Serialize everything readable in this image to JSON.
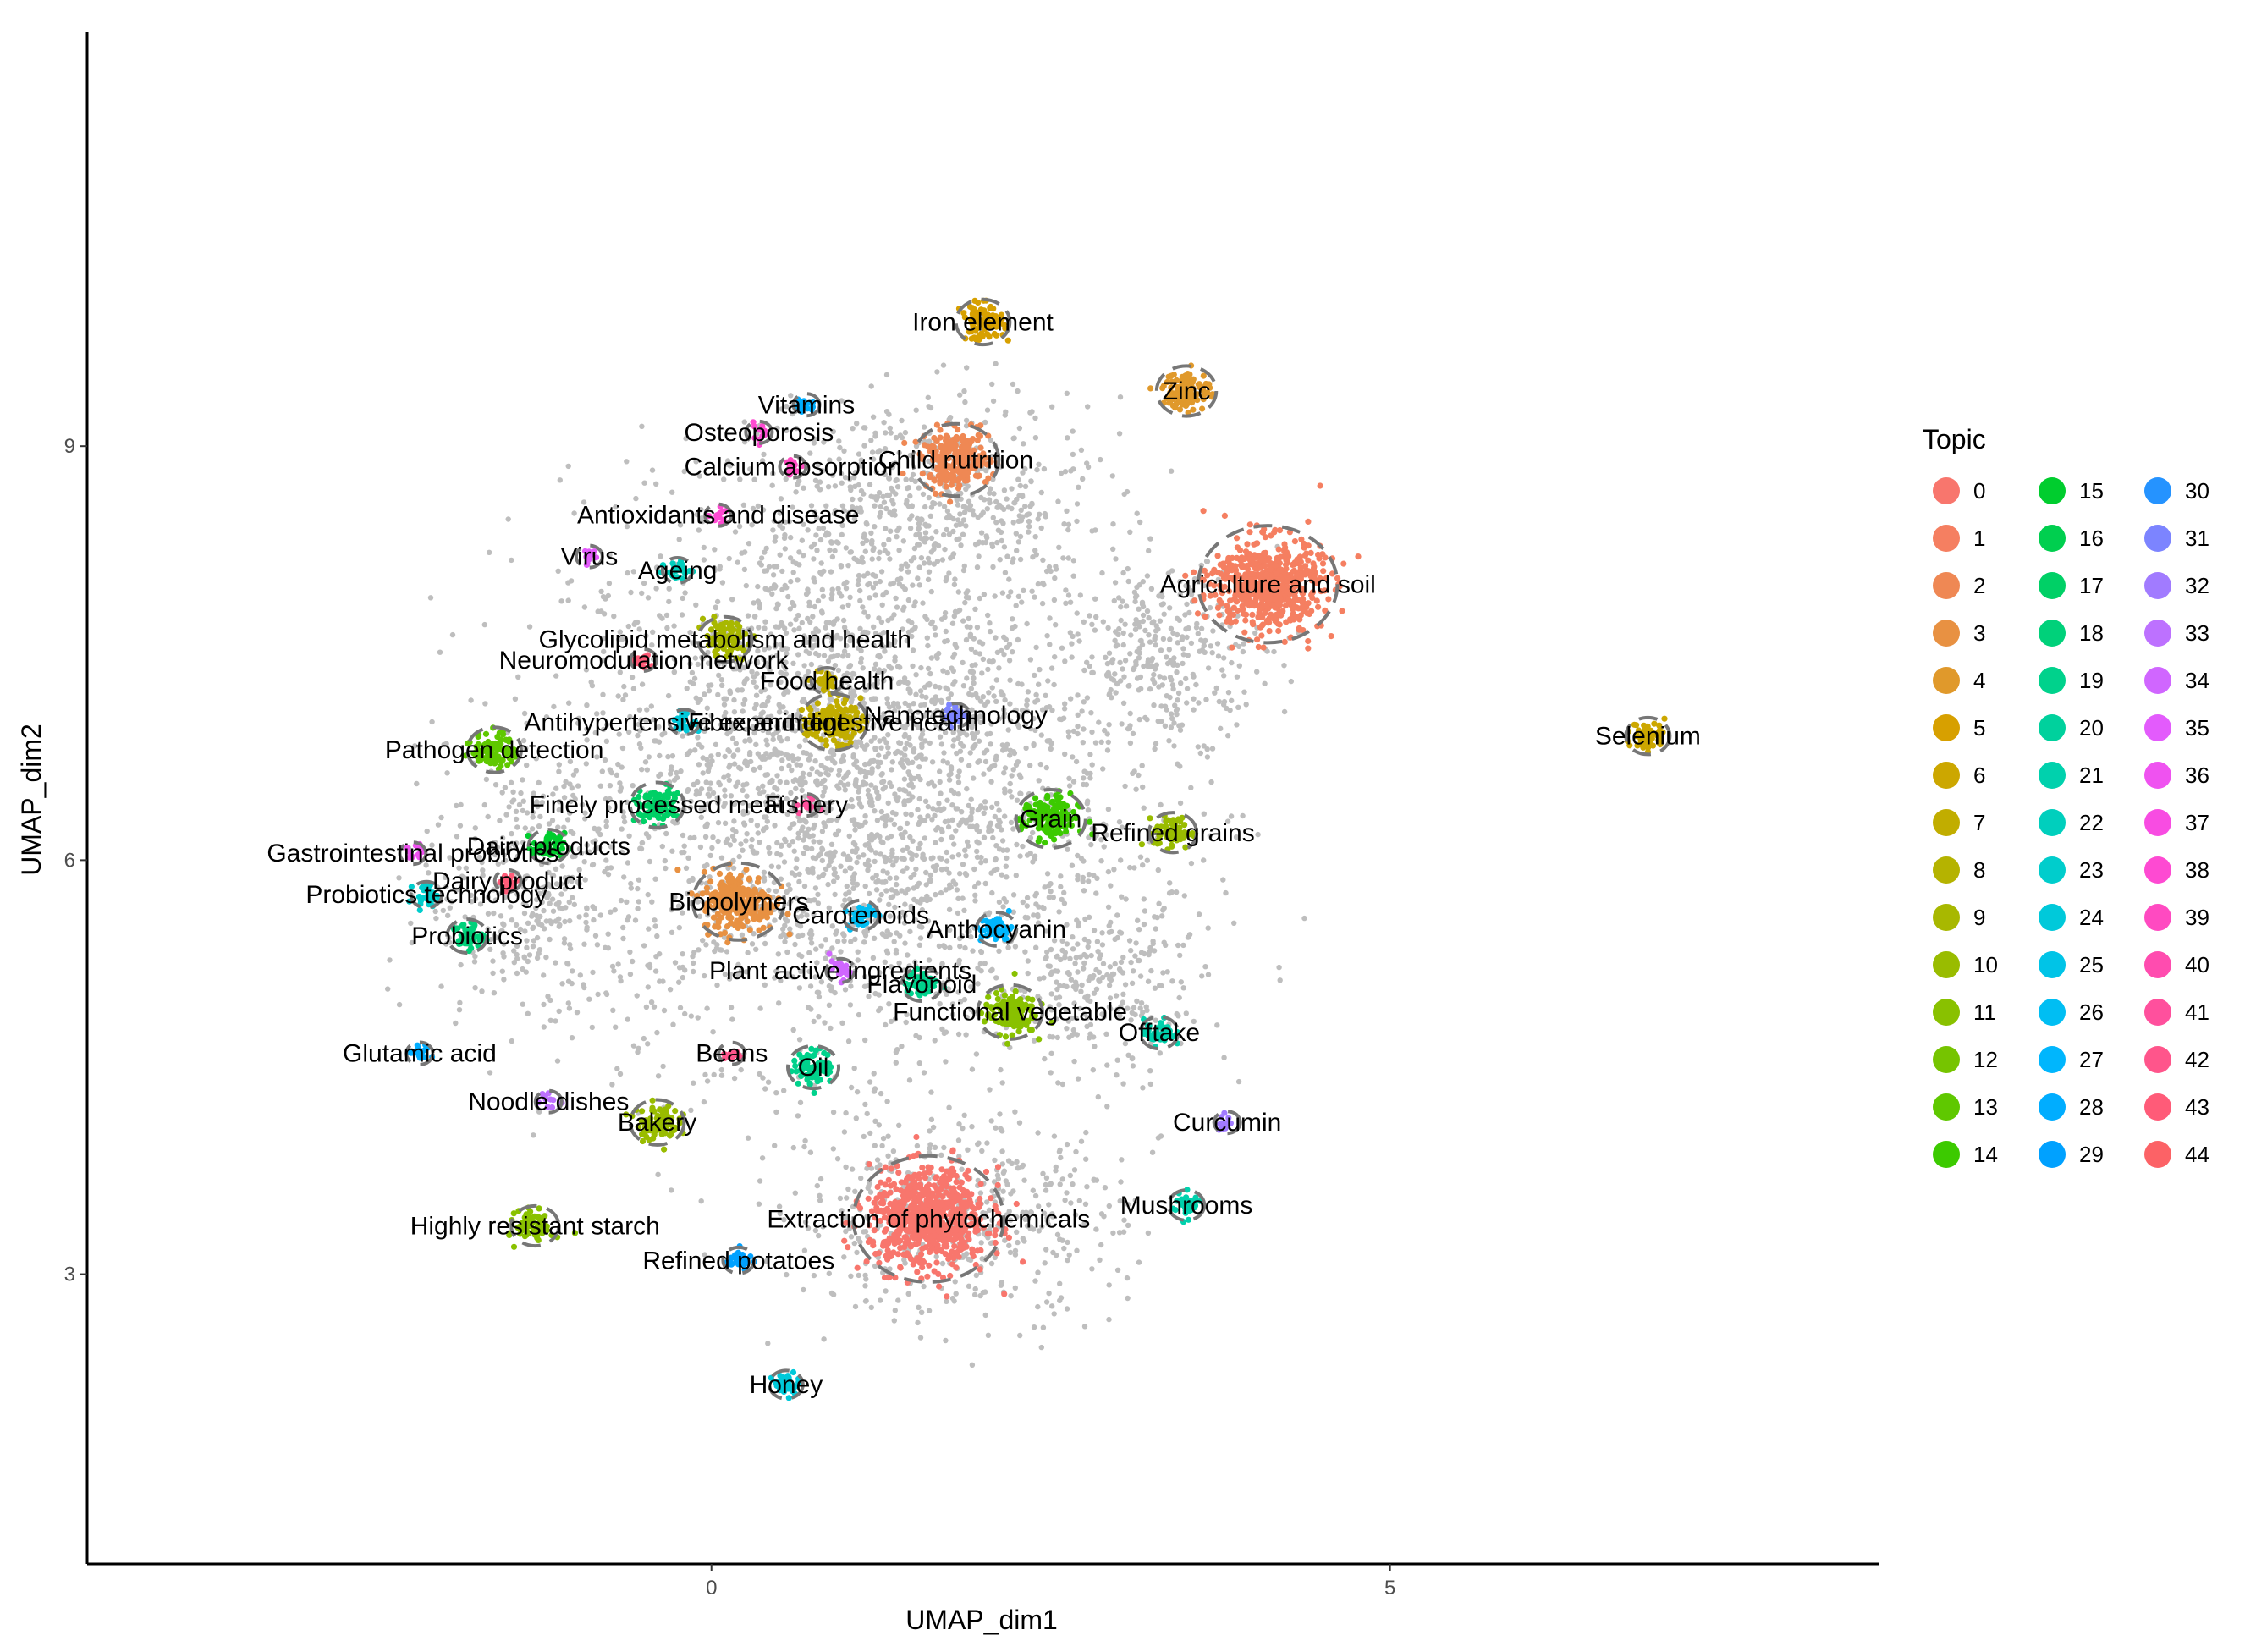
{
  "chart_data": {
    "type": "scatter",
    "title": "",
    "xlabel": "UMAP_dim1",
    "ylabel": "UMAP_dim2",
    "xlim": [
      -4.6,
      8.6
    ],
    "ylim": [
      0.9,
      12.0
    ],
    "xticks": [
      0,
      5
    ],
    "xtick_labels": [
      "0",
      "5"
    ],
    "yticks": [
      3,
      6,
      9
    ],
    "ytick_labels": [
      "3",
      "6",
      "9"
    ],
    "background_points_color": "#bebebe",
    "legend": {
      "title": "Topic",
      "position": "right",
      "entries": [
        "0",
        "1",
        "2",
        "3",
        "4",
        "5",
        "6",
        "7",
        "8",
        "9",
        "10",
        "11",
        "12",
        "13",
        "14",
        "15",
        "16",
        "17",
        "18",
        "19",
        "20",
        "21",
        "22",
        "23",
        "24",
        "25",
        "26",
        "27",
        "28",
        "29",
        "30",
        "31",
        "32",
        "33",
        "34",
        "35",
        "36",
        "37",
        "38",
        "39",
        "40",
        "41",
        "42",
        "43",
        "44"
      ],
      "colors": [
        "#F8766D",
        "#F57F61",
        "#EF8854",
        "#E89142",
        "#E0992B",
        "#D7A000",
        "#CCA700",
        "#C1AD00",
        "#B5B300",
        "#A8B800",
        "#99BC00",
        "#89C100",
        "#76C400",
        "#5FC800",
        "#3CCA00",
        "#00CD2E",
        "#00CF4F",
        "#00D066",
        "#00D17A",
        "#00D28C",
        "#00D19D",
        "#00D1AD",
        "#00CFBD",
        "#00CDCC",
        "#00C9DA",
        "#00C4E7",
        "#00BEF3",
        "#00B6FD",
        "#00ADFF",
        "#00A1FF",
        "#2593FF",
        "#7C84FF",
        "#A17BFF",
        "#BD71FF",
        "#D066FF",
        "#E35BFC",
        "#EF52F0",
        "#F84CE2",
        "#FE4AD2",
        "#FF4AC1",
        "#FF4CAF",
        "#FF509D",
        "#FF558B",
        "#FF5B78",
        "#FC6266"
      ]
    },
    "clusters": [
      {
        "label": "Iron element",
        "topic": 5,
        "x": 2.0,
        "y": 9.9,
        "n": 90
      },
      {
        "label": "Zinc",
        "topic": 4,
        "x": 3.5,
        "y": 9.4,
        "n": 110
      },
      {
        "label": "Vitamins",
        "topic": 28,
        "x": 0.7,
        "y": 9.3,
        "n": 18
      },
      {
        "label": "Child nutrition",
        "topic": 2,
        "x": 1.8,
        "y": 8.9,
        "n": 230
      },
      {
        "label": "Osteoporosis",
        "topic": 38,
        "x": 0.35,
        "y": 9.1,
        "n": 12
      },
      {
        "label": "Calcium absorption",
        "topic": 39,
        "x": 0.6,
        "y": 8.85,
        "n": 14
      },
      {
        "label": "Agriculture and soil",
        "topic": 1,
        "x": 4.1,
        "y": 8.0,
        "n": 600
      },
      {
        "label": "Virus",
        "topic": 35,
        "x": -0.9,
        "y": 8.2,
        "n": 12
      },
      {
        "label": "Ageing",
        "topic": 22,
        "x": -0.25,
        "y": 8.1,
        "n": 28
      },
      {
        "label": "Antioxidants and disease",
        "topic": 38,
        "x": 0.05,
        "y": 8.5,
        "n": 14
      },
      {
        "label": "Glycolipid metabolism and health",
        "topic": 9,
        "x": 0.1,
        "y": 7.6,
        "n": 90
      },
      {
        "label": "Fibre and digestive health",
        "topic": 7,
        "x": 0.9,
        "y": 7.0,
        "n": 140
      },
      {
        "label": "Neuromodulation network",
        "topic": 43,
        "x": -0.5,
        "y": 7.45,
        "n": 14
      },
      {
        "label": "Nanotechnology",
        "topic": 31,
        "x": 1.8,
        "y": 7.05,
        "n": 25
      },
      {
        "label": "Selenium",
        "topic": 6,
        "x": 6.9,
        "y": 6.9,
        "n": 60
      },
      {
        "label": "Pathogen detection",
        "topic": 13,
        "x": -1.6,
        "y": 6.8,
        "n": 90
      },
      {
        "label": "Antihypertensive experiment",
        "topic": 24,
        "x": -0.2,
        "y": 7.0,
        "n": 28
      },
      {
        "label": "Food health",
        "topic": 7,
        "x": 0.85,
        "y": 7.3,
        "n": 30
      },
      {
        "label": "Finely processed meat",
        "topic": 17,
        "x": -0.4,
        "y": 6.4,
        "n": 90
      },
      {
        "label": "Grain",
        "topic": 14,
        "x": 2.5,
        "y": 6.3,
        "n": 150
      },
      {
        "label": "Fishery",
        "topic": 41,
        "x": 0.7,
        "y": 6.4,
        "n": 12
      },
      {
        "label": "Gastrointestinal probiotics",
        "topic": 36,
        "x": -2.2,
        "y": 6.05,
        "n": 12
      },
      {
        "label": "Dairy products",
        "topic": 15,
        "x": -1.2,
        "y": 6.1,
        "n": 50
      },
      {
        "label": "Refined grains",
        "topic": 10,
        "x": 3.4,
        "y": 6.2,
        "n": 70
      },
      {
        "label": "Dairy product",
        "topic": 43,
        "x": -1.5,
        "y": 5.85,
        "n": 14
      },
      {
        "label": "Biopolymers",
        "topic": 3,
        "x": 0.2,
        "y": 5.7,
        "n": 260
      },
      {
        "label": "Carotenoids",
        "topic": 26,
        "x": 1.1,
        "y": 5.6,
        "n": 40
      },
      {
        "label": "Probiotics technology",
        "topic": 23,
        "x": -2.1,
        "y": 5.75,
        "n": 30
      },
      {
        "label": "Anthocyanin",
        "topic": 27,
        "x": 2.1,
        "y": 5.5,
        "n": 50
      },
      {
        "label": "Probiotics",
        "topic": 18,
        "x": -1.8,
        "y": 5.45,
        "n": 50
      },
      {
        "label": "Plant active ingredients",
        "topic": 34,
        "x": 0.95,
        "y": 5.2,
        "n": 25
      },
      {
        "label": "Flavonoid",
        "topic": 19,
        "x": 1.55,
        "y": 5.1,
        "n": 50
      },
      {
        "label": "Functional vegetable",
        "topic": 11,
        "x": 2.2,
        "y": 4.9,
        "n": 130
      },
      {
        "label": "Glutamic acid",
        "topic": 28,
        "x": -2.15,
        "y": 4.6,
        "n": 22
      },
      {
        "label": "Offtake",
        "topic": 21,
        "x": 3.3,
        "y": 4.75,
        "n": 45
      },
      {
        "label": "Beans",
        "topic": 42,
        "x": 0.15,
        "y": 4.6,
        "n": 14
      },
      {
        "label": "Oil",
        "topic": 19,
        "x": 0.75,
        "y": 4.5,
        "n": 80
      },
      {
        "label": "Noodle dishes",
        "topic": 33,
        "x": -1.2,
        "y": 4.25,
        "n": 10
      },
      {
        "label": "Curcumin",
        "topic": 32,
        "x": 3.8,
        "y": 4.1,
        "n": 14
      },
      {
        "label": "Bakery",
        "topic": 10,
        "x": -0.4,
        "y": 4.1,
        "n": 90
      },
      {
        "label": "Extraction of phytochemicals",
        "topic": 0,
        "x": 1.6,
        "y": 3.4,
        "n": 700
      },
      {
        "label": "Highly resistant starch",
        "topic": 11,
        "x": -1.3,
        "y": 3.35,
        "n": 70
      },
      {
        "label": "Mushrooms",
        "topic": 21,
        "x": 3.5,
        "y": 3.5,
        "n": 40
      },
      {
        "label": "Refined potatoes",
        "topic": 29,
        "x": 0.2,
        "y": 3.1,
        "n": 30
      },
      {
        "label": "Honey",
        "topic": 24,
        "x": 0.55,
        "y": 2.2,
        "n": 35
      }
    ]
  }
}
